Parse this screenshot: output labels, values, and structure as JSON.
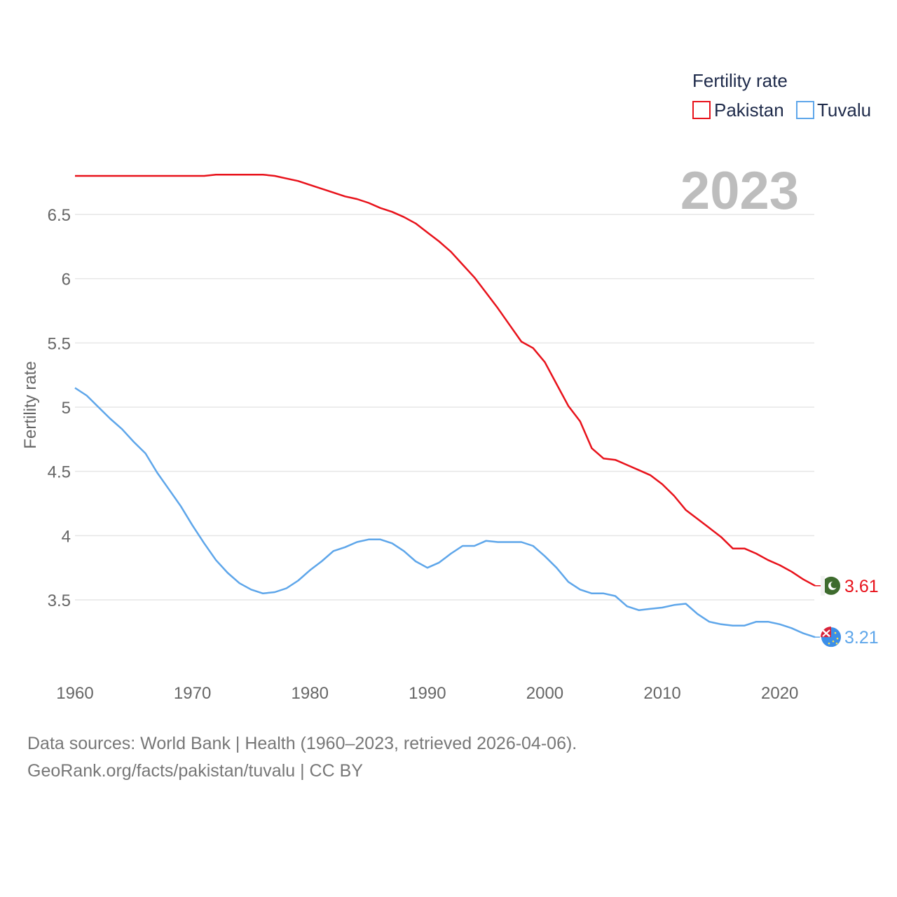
{
  "chart_data": {
    "type": "line",
    "title": "",
    "xlabel": "",
    "ylabel": "Fertility rate",
    "xlim": [
      1960,
      2023
    ],
    "ylim": [
      3.0,
      6.9
    ],
    "xticks": [
      1960,
      1970,
      1980,
      1990,
      2000,
      2010,
      2020
    ],
    "yticks": [
      3.5,
      4,
      4.5,
      5,
      5.5,
      6,
      6.5
    ],
    "ytick_labels": [
      "3.5",
      "4",
      "4.5",
      "5",
      "5.5",
      "6",
      "6.5"
    ],
    "legend_title": "Fertility rate",
    "legend_position": "top-right",
    "current_year": "2023",
    "series": [
      {
        "name": "Pakistan",
        "color": "#e8121b",
        "end_label": "3.61",
        "flag_icon": "pakistan-flag-icon",
        "x": [
          1960,
          1961,
          1962,
          1963,
          1964,
          1965,
          1966,
          1967,
          1968,
          1969,
          1970,
          1971,
          1972,
          1973,
          1974,
          1975,
          1976,
          1977,
          1978,
          1979,
          1980,
          1981,
          1982,
          1983,
          1984,
          1985,
          1986,
          1987,
          1988,
          1989,
          1990,
          1991,
          1992,
          1993,
          1994,
          1995,
          1996,
          1997,
          1998,
          1999,
          2000,
          2001,
          2002,
          2003,
          2004,
          2005,
          2006,
          2007,
          2008,
          2009,
          2010,
          2011,
          2012,
          2013,
          2014,
          2015,
          2016,
          2017,
          2018,
          2019,
          2020,
          2021,
          2022,
          2023
        ],
        "values": [
          6.8,
          6.8,
          6.8,
          6.8,
          6.8,
          6.8,
          6.8,
          6.8,
          6.8,
          6.8,
          6.8,
          6.8,
          6.81,
          6.81,
          6.81,
          6.81,
          6.81,
          6.8,
          6.78,
          6.76,
          6.73,
          6.7,
          6.67,
          6.64,
          6.62,
          6.59,
          6.55,
          6.52,
          6.48,
          6.43,
          6.36,
          6.29,
          6.21,
          6.11,
          6.01,
          5.89,
          5.77,
          5.64,
          5.51,
          5.46,
          5.35,
          5.18,
          5.01,
          4.89,
          4.68,
          4.6,
          4.59,
          4.55,
          4.51,
          4.47,
          4.4,
          4.31,
          4.2,
          4.13,
          4.06,
          3.99,
          3.9,
          3.9,
          3.86,
          3.81,
          3.77,
          3.72,
          3.66,
          3.61
        ]
      },
      {
        "name": "Tuvalu",
        "color": "#5ea6ea",
        "end_label": "3.21",
        "flag_icon": "tuvalu-flag-icon",
        "x": [
          1960,
          1961,
          1962,
          1963,
          1964,
          1965,
          1966,
          1967,
          1968,
          1969,
          1970,
          1971,
          1972,
          1973,
          1974,
          1975,
          1976,
          1977,
          1978,
          1979,
          1980,
          1981,
          1982,
          1983,
          1984,
          1985,
          1986,
          1987,
          1988,
          1989,
          1990,
          1991,
          1992,
          1993,
          1994,
          1995,
          1996,
          1997,
          1998,
          1999,
          2000,
          2001,
          2002,
          2003,
          2004,
          2005,
          2006,
          2007,
          2008,
          2009,
          2010,
          2011,
          2012,
          2013,
          2014,
          2015,
          2016,
          2017,
          2018,
          2019,
          2020,
          2021,
          2022,
          2023
        ],
        "values": [
          5.15,
          5.09,
          5.0,
          4.91,
          4.83,
          4.73,
          4.64,
          4.49,
          4.36,
          4.23,
          4.08,
          3.94,
          3.81,
          3.71,
          3.63,
          3.58,
          3.55,
          3.56,
          3.59,
          3.65,
          3.73,
          3.8,
          3.88,
          3.91,
          3.95,
          3.97,
          3.97,
          3.94,
          3.88,
          3.8,
          3.75,
          3.79,
          3.86,
          3.92,
          3.92,
          3.96,
          3.95,
          3.95,
          3.95,
          3.92,
          3.84,
          3.75,
          3.64,
          3.58,
          3.55,
          3.55,
          3.53,
          3.45,
          3.42,
          3.43,
          3.44,
          3.46,
          3.47,
          3.39,
          3.33,
          3.31,
          3.3,
          3.3,
          3.33,
          3.33,
          3.31,
          3.28,
          3.24,
          3.21
        ]
      }
    ]
  },
  "footer": {
    "line1": "Data sources: World Bank | Health (1960–2023, retrieved 2026-04-06).",
    "line2": "GeoRank.org/facts/pakistan/tuvalu | CC BY"
  }
}
